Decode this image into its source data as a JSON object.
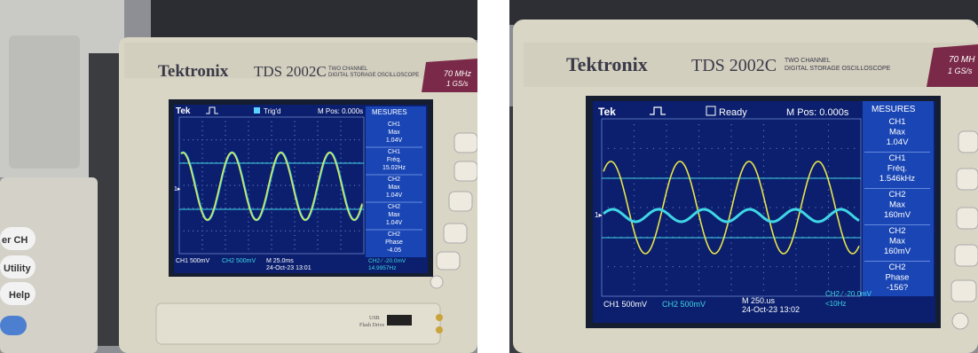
{
  "colors": {
    "screen_bg": "#0b1f6e",
    "grid": "#6f86c8",
    "ch1": "#e8e54a",
    "ch2": "#3fd6e6",
    "menu_bg": "#1a46b5",
    "bezel": "#ddd8c8"
  },
  "left": {
    "brand": "Tektronix",
    "model": "TDS 2002C",
    "model_sub1": "TWO CHANNEL",
    "model_sub2": "DIGITAL STORAGE OSCILLOSCOPE",
    "spec1": "70 MHz",
    "spec2": "1 GS/s",
    "tek": "Tek",
    "status": "Trig'd",
    "mpos": "M Pos: 0.000s",
    "menu_title": "MESURES",
    "menu": [
      {
        "l1": "CH1",
        "l2": "Max",
        "l3": "1.04V"
      },
      {
        "l1": "CH1",
        "l2": "Fréq.",
        "l3": "15.02Hz"
      },
      {
        "l1": "CH2",
        "l2": "Max",
        "l3": "1.04V"
      },
      {
        "l1": "CH2",
        "l2": "Max",
        "l3": "1.04V"
      },
      {
        "l1": "CH2",
        "l2": "Phase",
        "l3": "-4.05"
      }
    ],
    "ch1_scale": "CH1 500mV",
    "ch2_scale": "CH2 500mV",
    "timebase": "M 25.0ms",
    "date": "24-Oct-23 13:01",
    "trig": "CH2 ⁄ -20.0mV",
    "freq": "14.9957Hz",
    "side_buttons": [
      "er CH",
      "Utility",
      "Help"
    ],
    "usb1": "USB",
    "usb2": "Flash Drive"
  },
  "right": {
    "brand": "Tektronix",
    "model": "TDS 2002C",
    "model_sub1": "TWO CHANNEL",
    "model_sub2": "DIGITAL STORAGE OSCILLOSCOPE",
    "spec1": "70 MH",
    "spec2": "1 GS/s",
    "tek": "Tek",
    "status": "Ready",
    "mpos": "M Pos: 0.000s",
    "menu_title": "MESURES",
    "menu": [
      {
        "l1": "CH1",
        "l2": "Max",
        "l3": "1.04V"
      },
      {
        "l1": "CH1",
        "l2": "Fréq.",
        "l3": "1.546kHz"
      },
      {
        "l1": "CH2",
        "l2": "Max",
        "l3": "160mV"
      },
      {
        "l1": "CH2",
        "l2": "Max",
        "l3": "160mV"
      },
      {
        "l1": "CH2",
        "l2": "Phase",
        "l3": "-156?"
      }
    ],
    "ch1_scale": "CH1 500mV",
    "ch2_scale": "CH2 500mV",
    "timebase": "M 250.us",
    "date": "24-Oct-23 13:02",
    "trig": "CH2 ⁄ -20.0mV",
    "freq": "<10Hz"
  }
}
